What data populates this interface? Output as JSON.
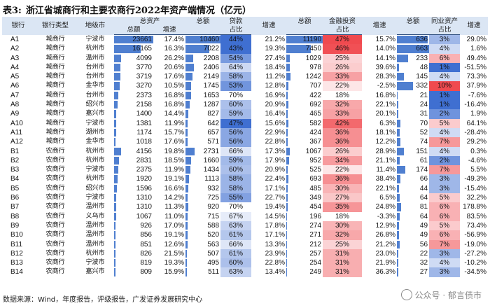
{
  "title": {
    "label": "表3:",
    "text": "浙江省城商行和主要农商行2022年资产端情况（亿元）"
  },
  "headers": {
    "bank": "银行",
    "type": "银行类型",
    "city": "地级市",
    "total_assets": "总资产",
    "loans": "贷款",
    "fin_inv": "金融投资",
    "interbank": "同业资产",
    "amount": "总额",
    "growth": "增速",
    "ratio": "占比"
  },
  "rows": [
    {
      "bank": "A1",
      "type": "城商行",
      "city": "宁波市",
      "ta": 23661,
      "tag": "17.4%",
      "la": 10460,
      "lr": "44%",
      "lg": "21.2%",
      "fa": 11190,
      "fr": "47%",
      "fg": "15.7%",
      "ia": 636,
      "ir": "3%",
      "ig": "29.0%"
    },
    {
      "bank": "A2",
      "type": "城商行",
      "city": "杭州市",
      "ta": 16165,
      "tag": "16.3%",
      "la": 7022,
      "lr": "43%",
      "lg": "19.3%",
      "fa": 7450,
      "fr": "46%",
      "fg": "14.0%",
      "ia": 663,
      "ir": "4%",
      "ig": "1.6%"
    },
    {
      "bank": "A3",
      "type": "城商行",
      "city": "温州市",
      "ta": 4099,
      "tag": "26.2%",
      "la": 2208,
      "lr": "54%",
      "lg": "27.4%",
      "fa": 1029,
      "fr": "25%",
      "fg": "14.1%",
      "ia": 233,
      "ir": "6%",
      "ig": "49.4%"
    },
    {
      "bank": "A4",
      "type": "城商行",
      "city": "台州市",
      "ta": 3770,
      "tag": "20.6%",
      "la": 2406,
      "lr": "64%",
      "lg": "18.4%",
      "fa": 978,
      "fr": "26%",
      "fg": "39.6%",
      "ia": 48,
      "ir": "1%",
      "ig": "-51.5%"
    },
    {
      "bank": "A5",
      "type": "城商行",
      "city": "台州市",
      "ta": 3719,
      "tag": "17.6%",
      "la": 2149,
      "lr": "58%",
      "lg": "11.2%",
      "fa": 1242,
      "fr": "33%",
      "fg": "28.3%",
      "ia": 145,
      "ir": "4%",
      "ig": "73.3%"
    },
    {
      "bank": "A6",
      "type": "城商行",
      "city": "金华市",
      "ta": 3270,
      "tag": "10.5%",
      "la": 1745,
      "lr": "53%",
      "lg": "12.8%",
      "fa": 707,
      "fr": "22%",
      "fg": "-2.5%",
      "ia": 332,
      "ir": "10%",
      "ig": "37.9%"
    },
    {
      "bank": "A7",
      "type": "城商行",
      "city": "台州市",
      "ta": 2373,
      "tag": "16.8%",
      "la": 1653,
      "lr": "70%",
      "lg": "16.9%",
      "fa": 422,
      "fr": "18%",
      "fg": "16.8%",
      "ia": 21,
      "ir": "1%",
      "ig": "-7.6%"
    },
    {
      "bank": "A8",
      "type": "城商行",
      "city": "绍兴市",
      "ta": 2158,
      "tag": "16.8%",
      "la": 1287,
      "lr": "60%",
      "lg": "20.9%",
      "fa": 692,
      "fr": "32%",
      "fg": "22.1%",
      "ia": 24,
      "ir": "1%",
      "ig": "-16.4%"
    },
    {
      "bank": "A9",
      "type": "城商行",
      "city": "嘉兴市",
      "ta": 1400,
      "tag": "14.4%",
      "la": 827,
      "lr": "59%",
      "lg": "16.4%",
      "fa": 465,
      "fr": "33%",
      "fg": "20.1%",
      "ia": 31,
      "ir": "2%",
      "ig": "1.9%"
    },
    {
      "bank": "A10",
      "type": "城商行",
      "city": "宁波市",
      "ta": 1381,
      "tag": "11.9%",
      "la": 642,
      "lr": "47%",
      "lg": "15.6%",
      "fa": 582,
      "fr": "42%",
      "fg": "6.3%",
      "ia": 70,
      "ir": "5%",
      "ig": "64.1%"
    },
    {
      "bank": "A11",
      "type": "城商行",
      "city": "湖州市",
      "ta": 1174,
      "tag": "15.7%",
      "la": 657,
      "lr": "56%",
      "lg": "22.9%",
      "fa": 424,
      "fr": "36%",
      "fg": "18.1%",
      "ia": 52,
      "ir": "4%",
      "ig": "-28.4%"
    },
    {
      "bank": "A12",
      "type": "城商行",
      "city": "金华市",
      "ta": 1018,
      "tag": "17.6%",
      "la": 571,
      "lr": "56%",
      "lg": "22.8%",
      "fa": 367,
      "fr": "36%",
      "fg": "12.2%",
      "ia": 74,
      "ir": "7%",
      "ig": "29.2%"
    },
    {
      "bank": "B1",
      "type": "农商行",
      "city": "杭州市",
      "ta": 4156,
      "tag": "19.8%",
      "la": 2731,
      "lr": "66%",
      "lg": "17.3%",
      "fa": 1067,
      "fr": "26%",
      "fg": "28.9%",
      "ia": 151,
      "ir": "4%",
      "ig": "0.3%"
    },
    {
      "bank": "B2",
      "type": "农商行",
      "city": "杭州市",
      "ta": 2831,
      "tag": "18.5%",
      "la": 1660,
      "lr": "59%",
      "lg": "17.9%",
      "fa": 952,
      "fr": "34%",
      "fg": "21.1%",
      "ia": 61,
      "ir": "2%",
      "ig": "-4.6%"
    },
    {
      "bank": "B3",
      "type": "农商行",
      "city": "宁波市",
      "ta": 2375,
      "tag": "11.9%",
      "la": 1434,
      "lr": "60%",
      "lg": "20.9%",
      "fa": 525,
      "fr": "22%",
      "fg": "11.4%",
      "ia": 174,
      "ir": "7%",
      "ig": "5.5%"
    },
    {
      "bank": "B4",
      "type": "农商行",
      "city": "杭州市",
      "ta": 1920,
      "tag": "19.1%",
      "la": 1113,
      "lr": "58%",
      "lg": "22.4%",
      "fa": 693,
      "fr": "36%",
      "fg": "38.4%",
      "ia": 66,
      "ir": "3%",
      "ig": "-49.3%"
    },
    {
      "bank": "B5",
      "type": "农商行",
      "city": "绍兴市",
      "ta": 1596,
      "tag": "16.6%",
      "la": 932,
      "lr": "58%",
      "lg": "17.1%",
      "fa": 485,
      "fr": "30%",
      "fg": "22.1%",
      "ia": 44,
      "ir": "3%",
      "ig": "-15.4%"
    },
    {
      "bank": "B6",
      "type": "农商行",
      "city": "宁波市",
      "ta": 1310,
      "tag": "14.2%",
      "la": 725,
      "lr": "55%",
      "lg": "22.7%",
      "fa": 349,
      "fr": "27%",
      "fg": "6.5%",
      "ia": 64,
      "ir": "5%",
      "ig": "32.2%"
    },
    {
      "bank": "B7",
      "type": "农商行",
      "city": "温州市",
      "ta": 1310,
      "tag": "11.3%",
      "la": 920,
      "lr": "70%",
      "lg": "19.4%",
      "fa": 454,
      "fr": "35%",
      "fg": "24.8%",
      "ia": 81,
      "ir": "6%",
      "ig": "178.8%"
    },
    {
      "bank": "B8",
      "type": "农商行",
      "city": "义乌市",
      "ta": 1067,
      "tag": "11.0%",
      "la": 715,
      "lr": "67%",
      "lg": "14.5%",
      "fa": 196,
      "fr": "18%",
      "fg": "-3.3%",
      "ia": 64,
      "ir": "6%",
      "ig": "83.5%"
    },
    {
      "bank": "B9",
      "type": "农商行",
      "city": "温州市",
      "ta": 926,
      "tag": "17.0%",
      "la": 588,
      "lr": "63%",
      "lg": "17.8%",
      "fa": 274,
      "fr": "30%",
      "fg": "12.9%",
      "ia": 49,
      "ir": "5%",
      "ig": "73.4%"
    },
    {
      "bank": "B10",
      "type": "农商行",
      "city": "温州市",
      "ta": 856,
      "tag": "19.1%",
      "la": 520,
      "lr": "61%",
      "lg": "17.1%",
      "fa": 271,
      "fr": "32%",
      "fg": "26.8%",
      "ia": 49,
      "ir": "6%",
      "ig": "-56.9%"
    },
    {
      "bank": "B11",
      "type": "农商行",
      "city": "温州市",
      "ta": 851,
      "tag": "12.6%",
      "la": 563,
      "lr": "66%",
      "lg": "13.3%",
      "fa": 212,
      "fr": "25%",
      "fg": "21.2%",
      "ia": 56,
      "ir": "7%",
      "ig": "-19.0%"
    },
    {
      "bank": "B12",
      "type": "农商行",
      "city": "杭州市",
      "ta": 826,
      "tag": "21.5%",
      "la": 507,
      "lr": "61%",
      "lg": "23.9%",
      "fa": 257,
      "fr": "31%",
      "fg": "23.0%",
      "ia": 22,
      "ir": "3%",
      "ig": "-27.2%"
    },
    {
      "bank": "B13",
      "type": "农商行",
      "city": "宁波市",
      "ta": 819,
      "tag": "19.3%",
      "la": 495,
      "lr": "60%",
      "lg": "22.8%",
      "fa": 254,
      "fr": "31%",
      "fg": "21.9%",
      "ia": 32,
      "ir": "4%",
      "ig": "-10.2%"
    },
    {
      "bank": "B14",
      "type": "农商行",
      "city": "嘉兴市",
      "ta": 809,
      "tag": "15.9%",
      "la": 511,
      "lr": "63%",
      "lg": "13.4%",
      "fa": 249,
      "fr": "31%",
      "fg": "36.3%",
      "ia": 27,
      "ir": "3%",
      "ig": "-34.5%"
    }
  ],
  "footer": "数据来源：Wind，年度报告，评级报告，广发证券发展研究中心",
  "watermark": "公众号 · 郁言债市",
  "colors": {
    "bar": "#4f7fd0",
    "blue_strong": "#3f6fd1",
    "red_strong": "#f04a4f",
    "header_bg": "#dbe6f4"
  }
}
